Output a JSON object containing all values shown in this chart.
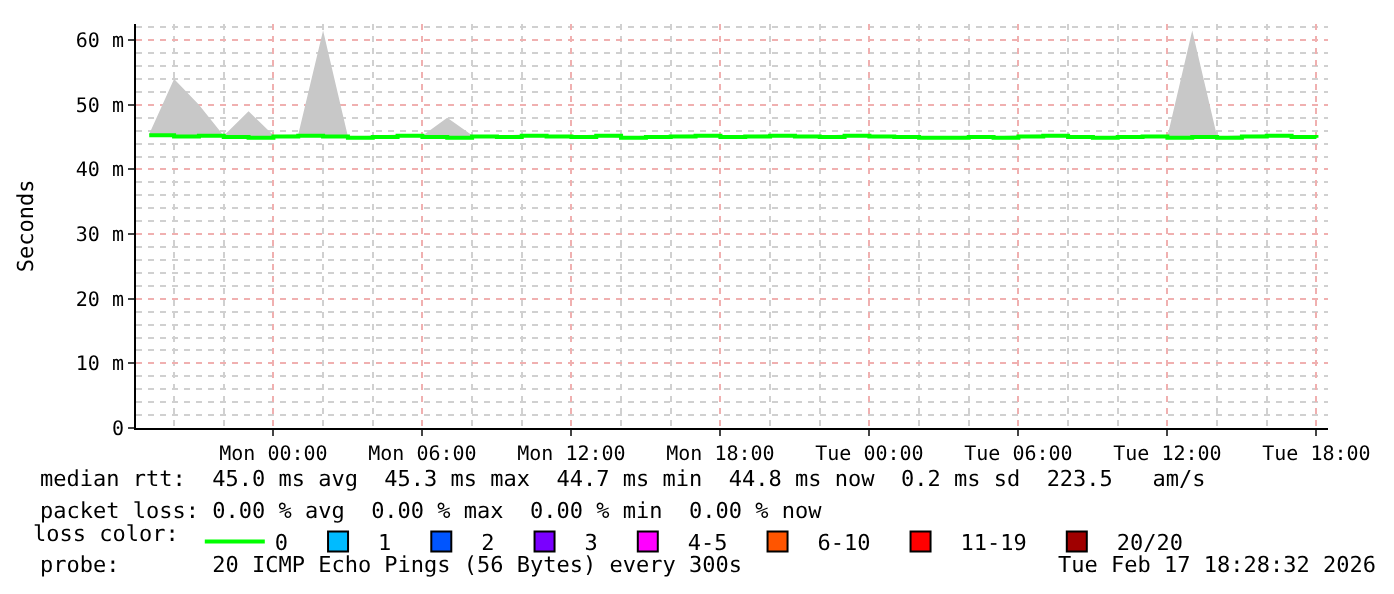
{
  "chart_data": {
    "type": "line",
    "ylabel": "Seconds",
    "legend_title": "loss color:",
    "x": [
      "2026-02-15T19:00",
      "2026-02-15T20:00",
      "2026-02-15T21:00",
      "2026-02-15T22:00",
      "2026-02-15T23:00",
      "2026-02-16T00:00",
      "2026-02-16T01:00",
      "2026-02-16T02:00",
      "2026-02-16T03:00",
      "2026-02-16T04:00",
      "2026-02-16T05:00",
      "2026-02-16T06:00",
      "2026-02-16T07:00",
      "2026-02-16T08:00",
      "2026-02-16T09:00",
      "2026-02-16T10:00",
      "2026-02-16T11:00",
      "2026-02-16T12:00",
      "2026-02-16T13:00",
      "2026-02-16T14:00",
      "2026-02-16T15:00",
      "2026-02-16T16:00",
      "2026-02-16T17:00",
      "2026-02-16T18:00",
      "2026-02-16T19:00",
      "2026-02-16T20:00",
      "2026-02-16T21:00",
      "2026-02-16T22:00",
      "2026-02-16T23:00",
      "2026-02-17T00:00",
      "2026-02-17T01:00",
      "2026-02-17T02:00",
      "2026-02-17T03:00",
      "2026-02-17T04:00",
      "2026-02-17T05:00",
      "2026-02-17T06:00",
      "2026-02-17T07:00",
      "2026-02-17T08:00",
      "2026-02-17T09:00",
      "2026-02-17T10:00",
      "2026-02-17T11:00",
      "2026-02-17T12:00",
      "2026-02-17T13:00",
      "2026-02-17T14:00",
      "2026-02-17T15:00",
      "2026-02-17T16:00",
      "2026-02-17T17:00",
      "2026-02-17T18:00"
    ],
    "series": [
      {
        "name": "0",
        "color": "#00ff00",
        "values": [
          45.3,
          45.1,
          45.2,
          45.0,
          44.9,
          45.1,
          45.2,
          45.1,
          44.9,
          45.0,
          45.2,
          45.0,
          44.9,
          45.1,
          45.0,
          45.2,
          45.1,
          45.0,
          45.2,
          44.9,
          45.0,
          45.1,
          45.2,
          45.0,
          45.1,
          45.2,
          45.1,
          45.0,
          45.2,
          45.1,
          45.0,
          44.9,
          44.9,
          45.0,
          44.9,
          45.1,
          45.2,
          45.0,
          44.9,
          45.0,
          45.1,
          44.9,
          45.0,
          44.9,
          45.1,
          45.2,
          45.0,
          44.9
        ],
        "lower": [
          45.3,
          45.1,
          45.2,
          45.0,
          44.9,
          45.1,
          45.2,
          45.1,
          44.9,
          45.0,
          45.2,
          45.0,
          44.9,
          45.1,
          45.0,
          45.2,
          45.1,
          45.0,
          45.2,
          44.9,
          45.0,
          45.1,
          45.2,
          45.0,
          45.1,
          45.2,
          45.1,
          45.0,
          45.2,
          45.1,
          45.0,
          44.9,
          44.9,
          45.0,
          44.9,
          45.1,
          45.2,
          45.0,
          44.9,
          45.0,
          45.1,
          44.9,
          45.0,
          44.9,
          45.1,
          45.2,
          45.0,
          44.9
        ],
        "upper": [
          45.5,
          54,
          50,
          45.2,
          49,
          45.3,
          45.4,
          61.5,
          45.1,
          45.2,
          45.4,
          45.2,
          48,
          45.3,
          45.2,
          45.4,
          45.3,
          45.2,
          45.4,
          45.1,
          45.2,
          45.3,
          45.4,
          45.2,
          45.3,
          45.4,
          45.3,
          45.2,
          45.4,
          45.3,
          45.2,
          45.1,
          45.1,
          45.2,
          45.1,
          45.3,
          45.4,
          45.2,
          45.1,
          45.2,
          45.1,
          45.1,
          61.5,
          45.1,
          45.3,
          45.4,
          45.2,
          45.1
        ]
      },
      {
        "name": "1",
        "color": "#00bbff",
        "type": "scatter",
        "values": [
          null,
          null,
          null,
          null,
          null,
          null,
          null,
          null,
          null,
          null,
          null,
          null,
          null,
          null,
          null,
          null,
          null,
          null,
          null,
          null,
          null,
          null,
          null,
          null,
          null,
          null,
          null,
          null,
          null,
          null,
          null,
          null,
          null,
          null,
          null,
          null,
          null,
          null,
          null,
          null,
          null,
          null,
          null,
          null,
          null,
          null,
          null,
          null
        ]
      },
      {
        "name": "2",
        "color": "#0055ff",
        "type": "scatter",
        "values": [
          null,
          null,
          null,
          null,
          null,
          null,
          null,
          null,
          null,
          null,
          null,
          null,
          null,
          null,
          null,
          null,
          null,
          null,
          null,
          null,
          null,
          null,
          null,
          null,
          null,
          null,
          null,
          null,
          null,
          null,
          null,
          null,
          null,
          null,
          null,
          null,
          null,
          null,
          null,
          null,
          null,
          null,
          null,
          null,
          null,
          null,
          null,
          null
        ]
      },
      {
        "name": "3",
        "color": "#7a00ff",
        "type": "scatter",
        "values": [
          null,
          null,
          null,
          null,
          null,
          null,
          null,
          null,
          null,
          null,
          null,
          null,
          null,
          null,
          null,
          null,
          null,
          null,
          null,
          null,
          null,
          null,
          null,
          null,
          null,
          null,
          null,
          null,
          null,
          null,
          null,
          null,
          null,
          null,
          null,
          null,
          null,
          null,
          null,
          null,
          null,
          null,
          null,
          null,
          null,
          null,
          null,
          null
        ]
      },
      {
        "name": "4-5",
        "color": "#ff00ff",
        "type": "scatter",
        "values": [
          null,
          null,
          null,
          null,
          null,
          null,
          null,
          null,
          null,
          null,
          null,
          null,
          null,
          null,
          null,
          null,
          null,
          null,
          null,
          null,
          null,
          null,
          null,
          null,
          null,
          null,
          null,
          null,
          null,
          null,
          null,
          null,
          null,
          null,
          null,
          null,
          null,
          null,
          null,
          null,
          null,
          null,
          null,
          null,
          null,
          null,
          null,
          null
        ]
      },
      {
        "name": "6-10",
        "color": "#ff5500",
        "type": "scatter",
        "values": [
          null,
          null,
          null,
          null,
          null,
          null,
          null,
          null,
          null,
          null,
          null,
          null,
          null,
          null,
          null,
          null,
          null,
          null,
          null,
          null,
          null,
          null,
          null,
          null,
          null,
          null,
          null,
          null,
          null,
          null,
          null,
          null,
          null,
          null,
          null,
          null,
          null,
          null,
          null,
          null,
          null,
          null,
          null,
          null,
          null,
          null,
          null,
          null
        ]
      },
      {
        "name": "11-19",
        "color": "#ff0000",
        "type": "scatter",
        "values": [
          null,
          null,
          null,
          null,
          null,
          null,
          null,
          null,
          null,
          null,
          null,
          null,
          null,
          null,
          null,
          null,
          null,
          null,
          null,
          null,
          null,
          null,
          null,
          null,
          null,
          null,
          null,
          null,
          null,
          null,
          null,
          null,
          null,
          null,
          null,
          null,
          null,
          null,
          null,
          null,
          null,
          null,
          null,
          null,
          null,
          null,
          null,
          null
        ]
      },
      {
        "name": "20/20",
        "color": "#a00000",
        "type": "scatter",
        "values": [
          null,
          null,
          null,
          null,
          null,
          null,
          null,
          null,
          null,
          null,
          null,
          null,
          null,
          null,
          null,
          null,
          null,
          null,
          null,
          null,
          null,
          null,
          null,
          null,
          null,
          null,
          null,
          null,
          null,
          null,
          null,
          null,
          null,
          null,
          null,
          null,
          null,
          null,
          null,
          null,
          null,
          null,
          null,
          null,
          null,
          null,
          null,
          null
        ]
      }
    ],
    "xlim": [
      "2026-02-15T18:28",
      "2026-02-17T18:28"
    ],
    "xticks": [
      {
        "value": "2026-02-16T00:00",
        "label": "Mon 00:00"
      },
      {
        "value": "2026-02-16T06:00",
        "label": "Mon 06:00"
      },
      {
        "value": "2026-02-16T12:00",
        "label": "Mon 12:00"
      },
      {
        "value": "2026-02-16T18:00",
        "label": "Mon 18:00"
      },
      {
        "value": "2026-02-17T00:00",
        "label": "Tue 00:00"
      },
      {
        "value": "2026-02-17T06:00",
        "label": "Tue 06:00"
      },
      {
        "value": "2026-02-17T12:00",
        "label": "Tue 12:00"
      },
      {
        "value": "2026-02-17T18:00",
        "label": "Tue 18:00"
      }
    ],
    "ylim": [
      0,
      62.5
    ],
    "yticks": [
      0,
      {
        "value": 10,
        "label": "10 m"
      },
      {
        "value": 20,
        "label": "20 m"
      },
      {
        "value": 30,
        "label": "30 m"
      },
      {
        "value": 40,
        "label": "40 m"
      },
      {
        "value": 50,
        "label": "50 m"
      },
      {
        "value": 60,
        "label": "60 m"
      }
    ],
    "grid": true,
    "legend": "bottom",
    "line_style": "solid",
    "annotations": [
      "median rtt:  45.0 ms avg  45.3 ms max  44.7 ms min  44.8 ms now  0.2 ms sd  223.5   am/s",
      "packet loss: 0.00 % avg  0.00 % max  0.00 % min  0.00 % now",
      "probe:       20 ICMP Echo Pings (56 Bytes) every 300s",
      "Tue Feb 17 18:28:32 2026"
    ]
  }
}
